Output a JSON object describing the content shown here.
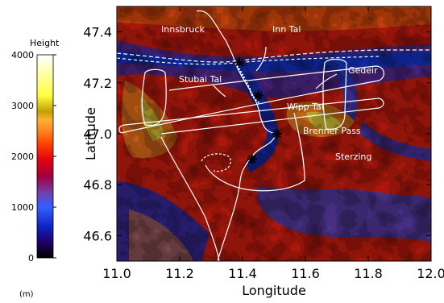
{
  "legend": {
    "title": "Height",
    "unit": "(m)",
    "ticks": [
      "0",
      "1000",
      "2000",
      "3000",
      "4000"
    ],
    "range": [
      0,
      4000
    ]
  },
  "axes": {
    "xlabel": "Longitude",
    "ylabel": "Latitude",
    "x_ticks": [
      "11.0",
      "11.2",
      "11.4",
      "11.6",
      "11.8",
      "12.0"
    ],
    "y_ticks": [
      "46.6",
      "46.8",
      "47.0",
      "47.2",
      "47.4"
    ],
    "xlim": [
      11.0,
      12.0
    ],
    "ylim": [
      46.5,
      47.5
    ]
  },
  "places": [
    {
      "name": "Innsbruck",
      "lon": 11.39,
      "lat": 47.28
    },
    {
      "name": "Inn Tal",
      "lon": 11.52,
      "lat": 47.23
    },
    {
      "name": "Stubai Tal",
      "lon": 11.3,
      "lat": 47.17
    },
    {
      "name": "Gedeir",
      "lon": 11.62,
      "lat": 47.11
    },
    {
      "name": "Wipp Tal",
      "lon": 11.47,
      "lat": 47.08
    },
    {
      "name": "Brenner Pass",
      "lon": 11.5,
      "lat": 47.0
    },
    {
      "name": "Sterzing",
      "lon": 11.43,
      "lat": 46.9
    }
  ],
  "place_labels": {
    "innsbruck": "Innsbruck",
    "inn_tal": "Inn Tal",
    "stubai_tal": "Stubai Tal",
    "gedeir": "Gedeir",
    "wipp_tal": "Wipp Tal",
    "brenner": "Brenner Pass",
    "sterzing": "Sterzing"
  },
  "markers": [
    {
      "lon": 11.39,
      "lat": 47.28
    },
    {
      "lon": 11.45,
      "lat": 47.15
    },
    {
      "lon": 11.51,
      "lat": 47.0
    },
    {
      "lon": 11.43,
      "lat": 46.9
    }
  ],
  "colors": {
    "valley": "#1030d0",
    "low": "#4060ff",
    "mid": "#b01050",
    "high": "#ff2000",
    "peak": "#ff9020",
    "summit": "#e8e040",
    "track": "#ffffff"
  }
}
